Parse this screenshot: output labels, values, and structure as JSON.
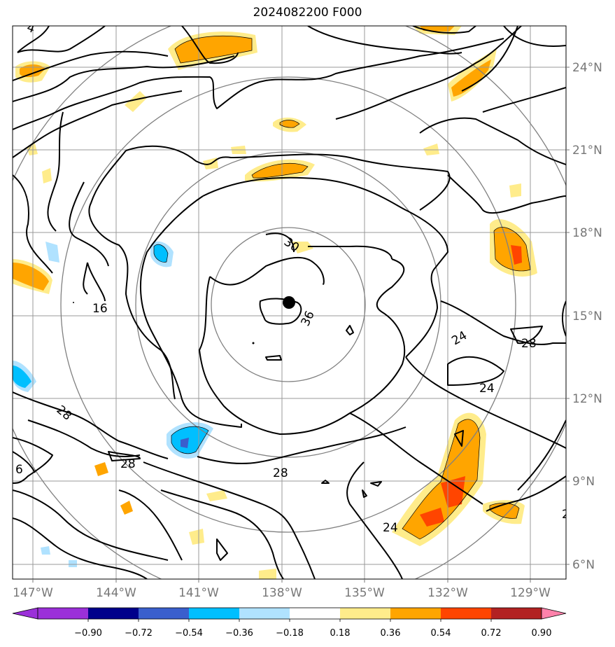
{
  "title": "2024082200 F000",
  "map": {
    "lat_labels": [
      "24°N",
      "21°N",
      "18°N",
      "15°N",
      "12°N",
      "9°N",
      "6°N"
    ],
    "lon_labels": [
      "147°W",
      "144°W",
      "141°W",
      "138°W",
      "135°W",
      "132°W",
      "129°W"
    ],
    "contour_labels": [
      "16",
      "30",
      "36",
      "24",
      "28",
      "24",
      "28",
      "28",
      "28",
      "24",
      "6",
      "2",
      "4"
    ],
    "center_marker": "storm-center-dot"
  },
  "colorbar": {
    "ticks": [
      "−0.90",
      "−0.72",
      "−0.54",
      "−0.36",
      "−0.18",
      "0.18",
      "0.36",
      "0.54",
      "0.72",
      "0.90"
    ],
    "colors": [
      "#9b30d9",
      "#00008b",
      "#3a5fcd",
      "#00bfff",
      "#b0e2ff",
      "#ffffff",
      "#ffec8b",
      "#ffa500",
      "#ff4500",
      "#b22222",
      "#ff82ab"
    ],
    "under_color": "#9b30d9",
    "over_color": "#ff82ab"
  }
}
